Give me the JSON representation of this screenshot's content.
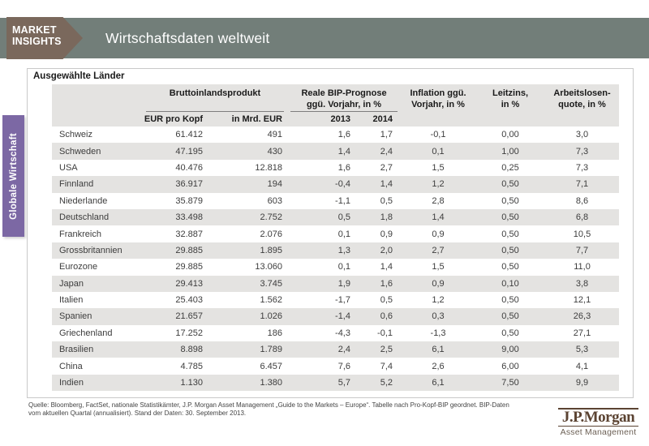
{
  "header": {
    "badge_line1": "MARKET",
    "badge_line2": "INSIGHTS",
    "title": "Wirtschaftsdaten weltweit"
  },
  "sidebar": {
    "tab_label": "Globale Wirtschaft"
  },
  "table": {
    "section_title": "Ausgewählte Länder",
    "group_headers": {
      "gdp": "Bruttoinlandsprodukt",
      "gdp_forecast": "Reale BIP-Prognose\nggü. Vorjahr, in %",
      "inflation": "Inflation ggü.\nVorjahr, in %",
      "policy_rate": "Leitzins,\nin %",
      "unemployment": "Arbeitslosen-\nquote, in %"
    },
    "sub_headers": {
      "gdp_per_capita": "EUR pro Kopf",
      "gdp_total": "in Mrd. EUR",
      "year_2013": "2013",
      "year_2014": "2014"
    },
    "columns": [
      {
        "name": "country-cell",
        "cls": "al"
      },
      {
        "name": "gdp-per-capita-cell",
        "cls": "ar"
      },
      {
        "name": "gdp-total-cell",
        "cls": "ar"
      },
      {
        "name": "forecast-2013-cell",
        "cls": "ar2"
      },
      {
        "name": "forecast-2014-cell",
        "cls": "ar2"
      },
      {
        "name": "inflation-cell",
        "cls": "ac"
      },
      {
        "name": "policy-rate-cell",
        "cls": "ac"
      },
      {
        "name": "unemployment-cell",
        "cls": "ac"
      }
    ],
    "rows": [
      [
        "Schweiz",
        "61.412",
        "491",
        "1,6",
        "1,7",
        "-0,1",
        "0,00",
        "3,0"
      ],
      [
        "Schweden",
        "47.195",
        "430",
        "1,4",
        "2,4",
        "0,1",
        "1,00",
        "7,3"
      ],
      [
        "USA",
        "40.476",
        "12.818",
        "1,6",
        "2,7",
        "1,5",
        "0,25",
        "7,3"
      ],
      [
        "Finnland",
        "36.917",
        "194",
        "-0,4",
        "1,4",
        "1,2",
        "0,50",
        "7,1"
      ],
      [
        "Niederlande",
        "35.879",
        "603",
        "-1,1",
        "0,5",
        "2,8",
        "0,50",
        "8,6"
      ],
      [
        "Deutschland",
        "33.498",
        "2.752",
        "0,5",
        "1,8",
        "1,4",
        "0,50",
        "6,8"
      ],
      [
        "Frankreich",
        "32.887",
        "2.076",
        "0,1",
        "0,9",
        "0,9",
        "0,50",
        "10,5"
      ],
      [
        "Grossbritannien",
        "29.885",
        "1.895",
        "1,3",
        "2,0",
        "2,7",
        "0,50",
        "7,7"
      ],
      [
        "Eurozone",
        "29.885",
        "13.060",
        "0,1",
        "1,4",
        "1,5",
        "0,50",
        "11,0"
      ],
      [
        "Japan",
        "29.413",
        "3.745",
        "1,9",
        "1,6",
        "0,9",
        "0,10",
        "3,8"
      ],
      [
        "Italien",
        "25.403",
        "1.562",
        "-1,7",
        "0,5",
        "1,2",
        "0,50",
        "12,1"
      ],
      [
        "Spanien",
        "21.657",
        "1.026",
        "-1,4",
        "0,6",
        "0,3",
        "0,50",
        "26,3"
      ],
      [
        "Griechenland",
        "17.252",
        "186",
        "-4,3",
        "-0,1",
        "-1,3",
        "0,50",
        "27,1"
      ],
      [
        "Brasilien",
        "8.898",
        "1.789",
        "2,4",
        "2,5",
        "6,1",
        "9,00",
        "5,3"
      ],
      [
        "China",
        "4.785",
        "6.457",
        "7,6",
        "7,4",
        "2,6",
        "6,00",
        "4,1"
      ],
      [
        "Indien",
        "1.130",
        "1.380",
        "5,7",
        "5,2",
        "6,1",
        "7,50",
        "9,9"
      ]
    ]
  },
  "footer": {
    "line1": "Quelle: Bloomberg, FactSet, nationale Statistikämter, J.P. Morgan Asset Management „Guide to the Markets – Europe“. Tabelle nach Pro-Kopf-BIP geordnet. BIP-Daten",
    "line2": "vom aktuellen Quartal (annualisiert). Stand der Daten: 30. September 2013."
  },
  "logo": {
    "name": "J.P.Morgan",
    "subtitle": "Asset Management"
  },
  "colors": {
    "band": "#727e79",
    "badge": "#7a685c",
    "side_tab": "#7c68a4",
    "row_stripe": "#e4e3e1",
    "logo_brown": "#5b4332"
  }
}
